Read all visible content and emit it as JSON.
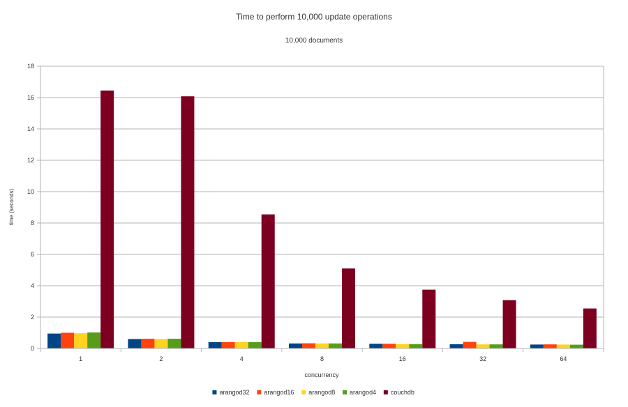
{
  "chart_data": {
    "type": "bar",
    "title": "Time to perform 10,000 update operations",
    "subtitle": "10,000 documents",
    "xlabel": "concurrency",
    "ylabel": "time (seconds)",
    "ylim": [
      0,
      18
    ],
    "yticks": [
      0,
      2,
      4,
      6,
      8,
      10,
      12,
      14,
      16,
      18
    ],
    "grid": true,
    "legend_position": "bottom",
    "categories": [
      "1",
      "2",
      "4",
      "8",
      "16",
      "32",
      "64"
    ],
    "series": [
      {
        "name": "arangod32",
        "color": "#004586",
        "values": [
          0.95,
          0.6,
          0.4,
          0.32,
          0.3,
          0.27,
          0.25
        ]
      },
      {
        "name": "arangod16",
        "color": "#ff420e",
        "values": [
          1.0,
          0.62,
          0.4,
          0.33,
          0.3,
          0.42,
          0.26
        ]
      },
      {
        "name": "arangod8",
        "color": "#ffd320",
        "values": [
          0.97,
          0.6,
          0.4,
          0.32,
          0.28,
          0.26,
          0.25
        ]
      },
      {
        "name": "arangod4",
        "color": "#579d1c",
        "values": [
          1.02,
          0.62,
          0.4,
          0.32,
          0.28,
          0.26,
          0.24
        ]
      },
      {
        "name": "couchdb",
        "color": "#7e0021",
        "values": [
          16.45,
          16.08,
          8.55,
          5.1,
          3.75,
          3.08,
          2.55
        ]
      }
    ]
  }
}
